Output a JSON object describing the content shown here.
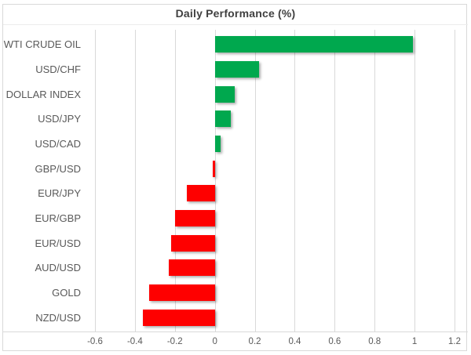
{
  "chart_data": {
    "type": "bar",
    "orientation": "horizontal",
    "title": "Daily Performance (%)",
    "categories": [
      "WTI CRUDE OIL",
      "USD/CHF",
      "DOLLAR INDEX",
      "USD/JPY",
      "USD/CAD",
      "GBP/USD",
      "EUR/JPY",
      "EUR/GBP",
      "EUR/USD",
      "AUD/USD",
      "GOLD",
      "NZD/USD"
    ],
    "values": [
      0.99,
      0.22,
      0.1,
      0.08,
      0.03,
      -0.01,
      -0.14,
      -0.2,
      -0.22,
      -0.23,
      -0.33,
      -0.36
    ],
    "xlim": [
      -0.6,
      1.2
    ],
    "xticks": [
      -0.6,
      -0.4,
      -0.2,
      0,
      0.2,
      0.4,
      0.6,
      0.8,
      1,
      1.2
    ],
    "xtick_labels": [
      "-0.6",
      "-0.4",
      "-0.2",
      "0",
      "0.2",
      "0.4",
      "0.6",
      "0.8",
      "1",
      "1.2"
    ],
    "grid": true,
    "legend": "none",
    "colors": {
      "positive": "#00A84E",
      "negative": "#FE0000",
      "gridline": "#D9D9D9",
      "title_text": "#404040",
      "axis_text": "#595959"
    }
  }
}
